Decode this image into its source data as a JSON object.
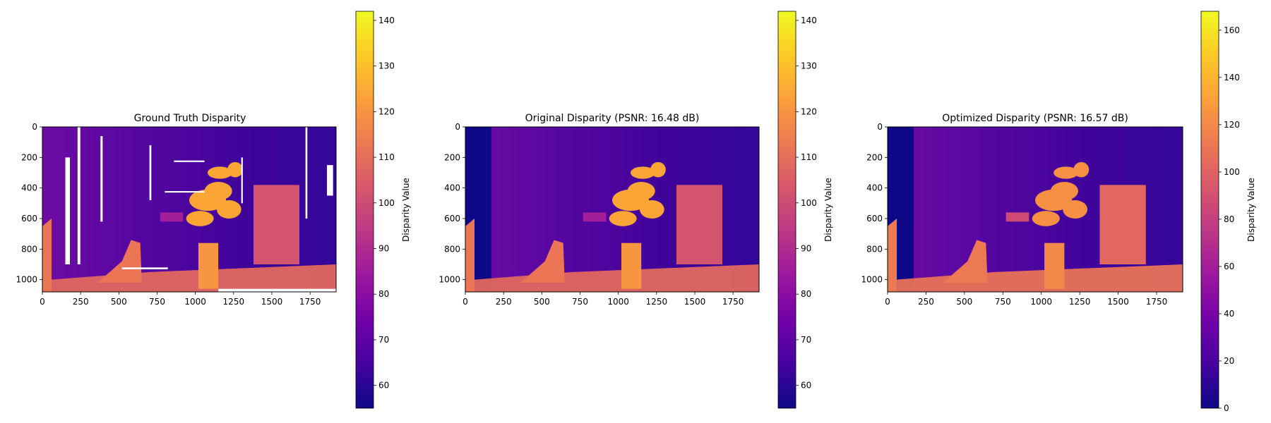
{
  "colors": {
    "plasma_stops": [
      "#0d0887",
      "#46039f",
      "#7201a8",
      "#9c179e",
      "#bd3786",
      "#d8576b",
      "#ed7953",
      "#fb9f3a",
      "#fdca26",
      "#f0f921"
    ],
    "missing": "#ffffff",
    "axes": "#000000"
  },
  "chart_data": [
    {
      "type": "heatmap",
      "title": "Ground Truth Disparity",
      "x_ticks": [
        0,
        250,
        500,
        750,
        1000,
        1250,
        1500,
        1750
      ],
      "y_ticks": [
        0,
        200,
        400,
        600,
        800,
        1000
      ],
      "xlim": [
        0,
        1920
      ],
      "ylim": [
        1080,
        0
      ],
      "colorbar": {
        "label": "Disparity Value",
        "range": [
          55,
          142
        ],
        "ticks": [
          60,
          70,
          80,
          90,
          100,
          110,
          120,
          130,
          140
        ]
      },
      "colormap": "plasma"
    },
    {
      "type": "heatmap",
      "title": "Original Disparity (PSNR: 16.48 dB)",
      "x_ticks": [
        0,
        250,
        500,
        750,
        1000,
        1250,
        1500,
        1750
      ],
      "y_ticks": [
        0,
        200,
        400,
        600,
        800,
        1000
      ],
      "xlim": [
        0,
        1920
      ],
      "ylim": [
        1080,
        0
      ],
      "colorbar": {
        "label": "Disparity Value",
        "range": [
          55,
          142
        ],
        "ticks": [
          60,
          70,
          80,
          90,
          100,
          110,
          120,
          130,
          140
        ]
      },
      "colormap": "plasma"
    },
    {
      "type": "heatmap",
      "title": "Optimized Disparity (PSNR: 16.57 dB)",
      "x_ticks": [
        0,
        250,
        500,
        750,
        1000,
        1250,
        1500,
        1750
      ],
      "y_ticks": [
        0,
        200,
        400,
        600,
        800,
        1000
      ],
      "xlim": [
        0,
        1920
      ],
      "ylim": [
        1080,
        0
      ],
      "colorbar": {
        "label": "Disparity Value",
        "range": [
          0,
          168
        ],
        "ticks": [
          0,
          20,
          40,
          60,
          80,
          100,
          120,
          140,
          160
        ]
      },
      "colormap": "plasma"
    }
  ]
}
